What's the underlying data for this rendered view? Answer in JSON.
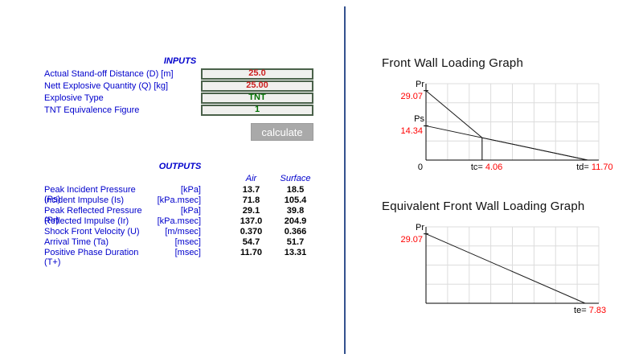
{
  "colors": {
    "accent-blue": "#0000cc",
    "value-red": "#cc2020",
    "value-green": "#007000",
    "chart-red": "#ff0000",
    "divider-blue": "#33518e",
    "button-gray": "#a9a9a9"
  },
  "inputs": {
    "header": "INPUTS",
    "rows": [
      {
        "label": "Actual Stand-off Distance (D) [m]",
        "value": "25.0",
        "color": "red"
      },
      {
        "label": "Nett Explosive Quantity (Q) [kg]",
        "value": "25.00",
        "color": "red"
      },
      {
        "label": "Explosive Type",
        "value": "TNT",
        "color": "green"
      },
      {
        "label": "TNT Equivalence Figure",
        "value": "1",
        "color": "green"
      }
    ],
    "calculate_label": "calculate"
  },
  "outputs": {
    "header": "OUTPUTS",
    "columns": {
      "air": "Air",
      "surface": "Surface"
    },
    "rows": [
      {
        "label": "Peak Incident Pressure (Ps)",
        "unit": "[kPa]",
        "air": "13.7",
        "surface": "18.5"
      },
      {
        "label": "Incident Impulse (Is)",
        "unit": "[kPa.msec]",
        "air": "71.8",
        "surface": "105.4"
      },
      {
        "label": "Peak Reflected Pressure (Pr)",
        "unit": "[kPa]",
        "air": "29.1",
        "surface": "39.8"
      },
      {
        "label": "Reflected Impulse (Ir)",
        "unit": "[kPa.msec]",
        "air": "137.0",
        "surface": "204.9"
      },
      {
        "label": "Shock Front Velocity (U)",
        "unit": "[m/msec]",
        "air": "0.370",
        "surface": "0.366"
      },
      {
        "label": "Arrival Time (Ta)",
        "unit": "[msec]",
        "air": "54.7",
        "surface": "51.7"
      },
      {
        "label": "Positive Phase Duration (T+)",
        "unit": "[msec]",
        "air": "11.70",
        "surface": "13.31"
      }
    ]
  },
  "chart_data": [
    {
      "type": "line",
      "title": "Front Wall Loading Graph",
      "xlim": [
        0,
        12.5
      ],
      "ylim": [
        0,
        32
      ],
      "grid": true,
      "legend": "none",
      "series": [
        {
          "name": "reflected-pressure-decay",
          "points": [
            [
              0,
              29.07
            ],
            [
              4.06,
              9.37
            ],
            [
              11.7,
              0
            ]
          ]
        },
        {
          "name": "stagnation-pressure-decay",
          "points": [
            [
              0,
              14.34
            ],
            [
              11.7,
              0
            ]
          ]
        }
      ],
      "vlines": [
        {
          "x": 4.06,
          "y": 9.37
        }
      ],
      "y_ticks": [
        {
          "name": "Pr",
          "label": "29.07",
          "value": 29.07
        },
        {
          "name": "Ps",
          "label": "14.34",
          "value": 14.34
        }
      ],
      "x_ticks": [
        {
          "prefix": "tc= ",
          "label": "4.06",
          "value": 4.06
        },
        {
          "prefix": "td= ",
          "label": "11.70",
          "value": 11.7
        }
      ],
      "origin_label": "0"
    },
    {
      "type": "line",
      "title": "Equivalent Front Wall Loading Graph",
      "xlim": [
        0,
        8.5
      ],
      "ylim": [
        0,
        32
      ],
      "grid": true,
      "legend": "none",
      "series": [
        {
          "name": "equivalent-triangular-load",
          "points": [
            [
              0,
              29.07
            ],
            [
              7.83,
              0
            ]
          ]
        }
      ],
      "vlines": [],
      "y_ticks": [
        {
          "name": "Pr",
          "label": "29.07",
          "value": 29.07
        }
      ],
      "x_ticks": [
        {
          "prefix": "te= ",
          "label": "7.83",
          "value": 7.83
        }
      ],
      "origin_label": ""
    }
  ]
}
